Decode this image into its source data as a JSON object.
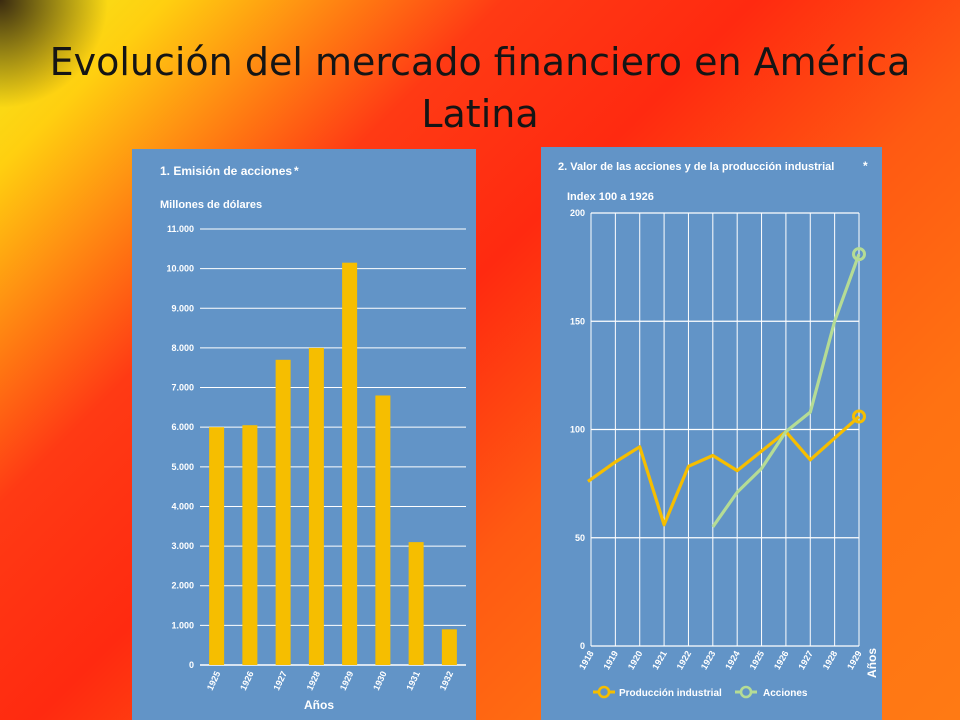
{
  "slide": {
    "title": "Evolución del mercado financiero en América Latina"
  },
  "colors": {
    "panel": "#6294c7",
    "bar": "#f6be00",
    "line_produccion": "#f6be00",
    "line_acciones": "#b5dc95",
    "grid": "#ffffff"
  },
  "chart_data": [
    {
      "type": "bar",
      "title": "1. Emisión de acciones",
      "title_mark": "*",
      "ylabel": "Millones de dólares",
      "xlabel": "Años",
      "categories": [
        "1925",
        "1926",
        "1927",
        "1928",
        "1929",
        "1930",
        "1931",
        "1932"
      ],
      "values": [
        6000,
        6050,
        7700,
        8000,
        10150,
        6800,
        3100,
        900
      ],
      "yticks": [
        "0",
        "1.000",
        "2.000",
        "3.000",
        "4.000",
        "5.000",
        "6.000",
        "7.000",
        "8.000",
        "9.000",
        "10.000",
        "11.000"
      ],
      "ylim": [
        0,
        11000
      ],
      "grid": true
    },
    {
      "type": "line",
      "title": "2. Valor de las acciones y de la producción industrial",
      "title_mark": "*",
      "ylabel": "Index 100 a 1926",
      "xlabel": "Años",
      "x": [
        "1918",
        "1919",
        "1920",
        "1921",
        "1922",
        "1923",
        "1924",
        "1925",
        "1926",
        "1927",
        "1928",
        "1929"
      ],
      "yticks": [
        "0",
        "50",
        "100",
        "150",
        "200"
      ],
      "ylim": [
        0,
        200
      ],
      "grid": true,
      "legend_position": "bottom",
      "series": [
        {
          "name": "Producción industrial",
          "key": "produccion",
          "x": [
            "1918",
            "1919",
            "1920",
            "1921",
            "1922",
            "1923",
            "1924",
            "1925",
            "1926",
            "1927",
            "1928",
            "1929"
          ],
          "values": [
            77,
            85,
            92,
            56,
            83,
            88,
            81,
            90,
            99,
            86,
            96,
            106
          ]
        },
        {
          "name": "Acciones",
          "key": "acciones",
          "x": [
            "1923",
            "1924",
            "1925",
            "1926",
            "1927",
            "1928",
            "1929"
          ],
          "values": [
            55,
            71,
            82,
            99,
            108,
            150,
            181
          ]
        }
      ]
    }
  ]
}
